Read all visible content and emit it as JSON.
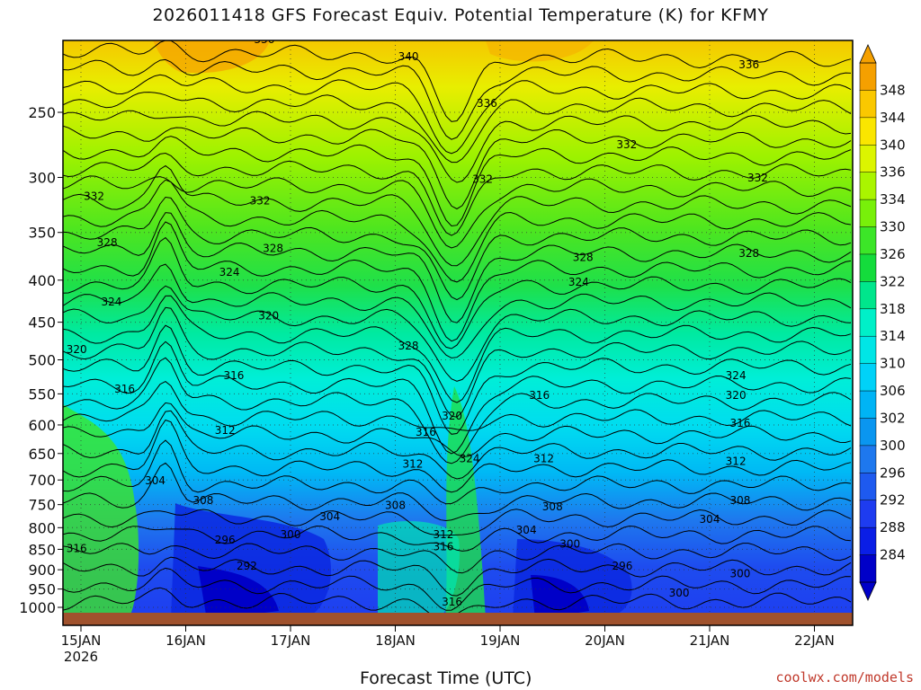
{
  "title": "2026011418 GFS Forecast Equiv. Potential Temperature (K) for KFMY",
  "x_axis_title": "Forecast Time (UTC)",
  "credit": "coolwx.com/models",
  "chart_data": {
    "type": "heatmap",
    "title": "2026011418 GFS Forecast Equiv. Potential Temperature (K) for KFMY",
    "xlabel": "Forecast Time (UTC)",
    "ylabel": "",
    "y_scale": "log (pressure, inverted)",
    "y_ticks": [
      250,
      300,
      350,
      400,
      450,
      500,
      550,
      600,
      650,
      700,
      750,
      800,
      850,
      900,
      950,
      1000
    ],
    "x_ticks": [
      {
        "value": "2026-01-15",
        "label": "15JAN",
        "sublabel": "2026"
      },
      {
        "value": "2026-01-16",
        "label": "16JAN"
      },
      {
        "value": "2026-01-17",
        "label": "17JAN"
      },
      {
        "value": "2026-01-18",
        "label": "18JAN"
      },
      {
        "value": "2026-01-19",
        "label": "19JAN"
      },
      {
        "value": "2026-01-20",
        "label": "20JAN"
      },
      {
        "value": "2026-01-21",
        "label": "21JAN"
      },
      {
        "value": "2026-01-22",
        "label": "22JAN"
      }
    ],
    "grid": true,
    "colorbar": {
      "levels": [
        284,
        288,
        292,
        296,
        300,
        302,
        306,
        310,
        314,
        318,
        322,
        326,
        330,
        334,
        336,
        340,
        344,
        348
      ],
      "colors": [
        "#0000c8",
        "#0a1ee6",
        "#1e3cf0",
        "#1e5aef",
        "#1e78ee",
        "#0a96f0",
        "#00b4f5",
        "#00d2f8",
        "#00e6e6",
        "#00f0c8",
        "#00e68c",
        "#14dc3c",
        "#3ce628",
        "#78f00a",
        "#aaf500",
        "#dcf500",
        "#fae600",
        "#fac800",
        "#f5a000"
      ],
      "extend": "both"
    },
    "contour_labels": [
      {
        "value": "336",
        "time": "2026-01-16 18",
        "p": 205
      },
      {
        "value": "340",
        "time": "2026-01-18 03",
        "p": 215
      },
      {
        "value": "336",
        "time": "2026-01-21 09",
        "p": 220
      },
      {
        "value": "336",
        "time": "2026-01-18 21",
        "p": 245
      },
      {
        "value": "332",
        "time": "2026-01-20 05",
        "p": 275
      },
      {
        "value": "332",
        "time": "2026-01-15 03",
        "p": 318
      },
      {
        "value": "332",
        "time": "2026-01-16 17",
        "p": 322
      },
      {
        "value": "332",
        "time": "2026-01-18 20",
        "p": 303
      },
      {
        "value": "332",
        "time": "2026-01-21 11",
        "p": 302
      },
      {
        "value": "328",
        "time": "2026-01-15 06",
        "p": 362
      },
      {
        "value": "328",
        "time": "2026-01-16 20",
        "p": 368
      },
      {
        "value": "328",
        "time": "2026-01-19 19",
        "p": 377
      },
      {
        "value": "328",
        "time": "2026-01-21 09",
        "p": 373
      },
      {
        "value": "324",
        "time": "2026-01-15 07",
        "p": 427
      },
      {
        "value": "324",
        "time": "2026-01-16 10",
        "p": 393
      },
      {
        "value": "324",
        "time": "2026-01-19 18",
        "p": 404
      },
      {
        "value": "328",
        "time": "2026-01-18 03",
        "p": 483
      },
      {
        "value": "320",
        "time": "2026-01-16 19",
        "p": 444
      },
      {
        "value": "320",
        "time": "2026-01-14 23",
        "p": 488
      },
      {
        "value": "316",
        "time": "2026-01-16 11",
        "p": 525
      },
      {
        "value": "324",
        "time": "2026-01-21 06",
        "p": 525
      },
      {
        "value": "316",
        "time": "2026-01-15 10",
        "p": 545
      },
      {
        "value": "320",
        "time": "2026-01-21 06",
        "p": 555
      },
      {
        "value": "316",
        "time": "2026-01-19 09",
        "p": 555
      },
      {
        "value": "320",
        "time": "2026-01-18 13",
        "p": 588
      },
      {
        "value": "316",
        "time": "2026-01-21 07",
        "p": 600
      },
      {
        "value": "312",
        "time": "2026-01-16 09",
        "p": 612
      },
      {
        "value": "316",
        "time": "2026-01-18 07",
        "p": 615
      },
      {
        "value": "324",
        "time": "2026-01-18 17",
        "p": 663
      },
      {
        "value": "312",
        "time": "2026-01-18 04",
        "p": 673
      },
      {
        "value": "312",
        "time": "2026-01-19 10",
        "p": 663
      },
      {
        "value": "312",
        "time": "2026-01-21 06",
        "p": 668
      },
      {
        "value": "304",
        "time": "2026-01-15 17",
        "p": 705
      },
      {
        "value": "308",
        "time": "2026-01-16 04",
        "p": 745
      },
      {
        "value": "308",
        "time": "2026-01-18 00",
        "p": 755
      },
      {
        "value": "308",
        "time": "2026-01-19 12",
        "p": 758
      },
      {
        "value": "308",
        "time": "2026-01-21 07",
        "p": 745
      },
      {
        "value": "304",
        "time": "2026-01-17 09",
        "p": 780
      },
      {
        "value": "304",
        "time": "2026-01-21 00",
        "p": 785
      },
      {
        "value": "300",
        "time": "2026-01-17 00",
        "p": 820
      },
      {
        "value": "312",
        "time": "2026-01-18 11",
        "p": 820
      },
      {
        "value": "304",
        "time": "2026-01-19 06",
        "p": 810
      },
      {
        "value": "296",
        "time": "2026-01-16 09",
        "p": 832
      },
      {
        "value": "316",
        "time": "2026-01-18 11",
        "p": 848
      },
      {
        "value": "300",
        "time": "2026-01-19 16",
        "p": 842
      },
      {
        "value": "316",
        "time": "2026-01-14 23",
        "p": 852
      },
      {
        "value": "292",
        "time": "2026-01-16 14",
        "p": 895
      },
      {
        "value": "296",
        "time": "2026-01-20 04",
        "p": 895
      },
      {
        "value": "300",
        "time": "2026-01-21 07",
        "p": 915
      },
      {
        "value": "300",
        "time": "2026-01-20 17",
        "p": 965
      },
      {
        "value": "316",
        "time": "2026-01-18 13",
        "p": 990
      }
    ]
  }
}
